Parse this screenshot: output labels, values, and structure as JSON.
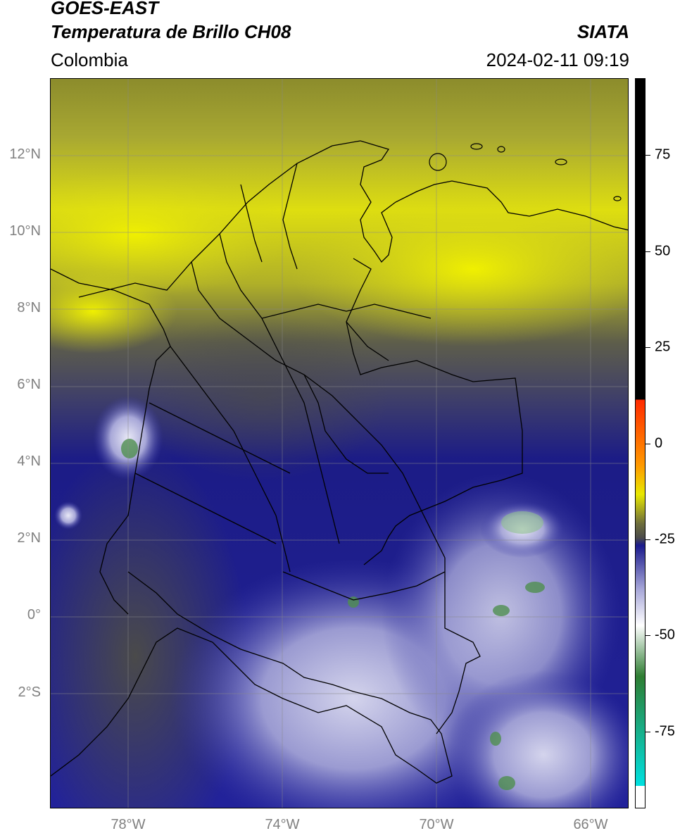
{
  "header": {
    "title1": "GOES-EAST",
    "title2": "Temperatura de Brillo CH08",
    "region": "Colombia",
    "brand": "SIATA",
    "datetime": "2024-02-11 09:19"
  },
  "map": {
    "lat_range": [
      -5,
      14
    ],
    "lon_range": [
      -80,
      -65
    ],
    "lat_ticks": [
      "12°N",
      "10°N",
      "8°N",
      "6°N",
      "4°N",
      "2°N",
      "0°",
      "2°S"
    ],
    "lon_ticks": [
      "78°W",
      "74°W",
      "70°W",
      "66°W"
    ]
  },
  "colorbar": {
    "range": [
      -95,
      95
    ],
    "ticks": [
      "75",
      "50",
      "25",
      "0",
      "-25",
      "-50",
      "-75"
    ],
    "colors": {
      "black": "#000000",
      "red": "#ff2a00",
      "orange": "#ff9900",
      "yellow": "#e8e800",
      "olive": "#6e6e3c",
      "gray": "#4a4a4a",
      "navy": "#1a1a8c",
      "lavender": "#a6a6d8",
      "white": "#ffffff",
      "green": "#2e7d32",
      "cyan": "#00e0e0"
    }
  }
}
